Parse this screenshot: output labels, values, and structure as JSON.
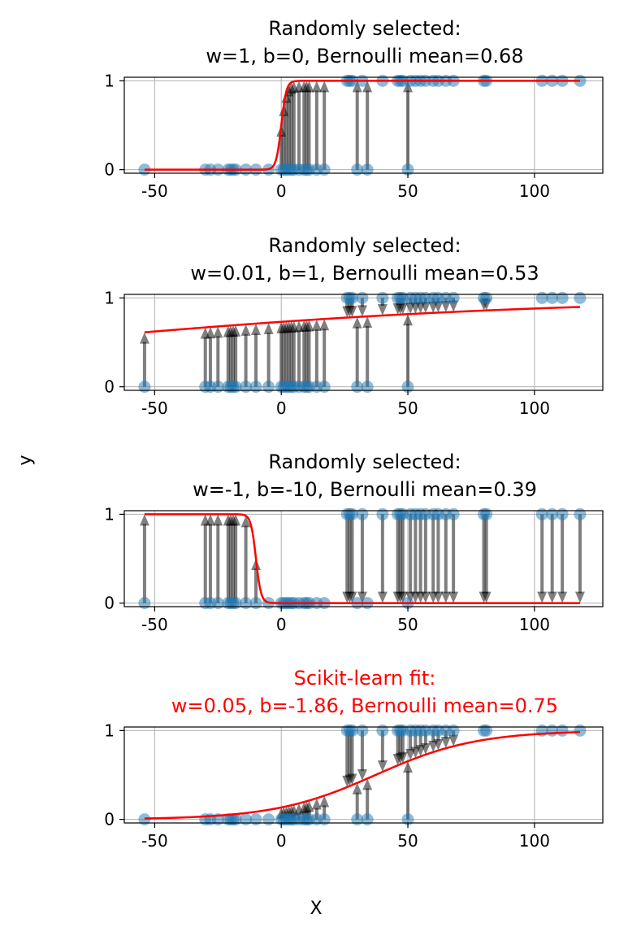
{
  "figure": {
    "ylabel": "y",
    "xlabel": "X"
  },
  "colors": {
    "points": "#1f77b4",
    "curve": "#ff0000",
    "arrow": "#000000",
    "grid": "#b0b0b0",
    "fit_title": "#ff0000",
    "title": "#000000"
  },
  "chart_data": [
    {
      "type": "scatter",
      "title_line1": "Randomly selected:",
      "title_line2": "w=1, b=0, Bernoulli mean=0.68",
      "w": 1,
      "b": 0,
      "xlim": [
        -62,
        127
      ],
      "ylim": [
        -0.04,
        1.04
      ],
      "xticks": [
        -50,
        0,
        50,
        100
      ],
      "yticks": [
        0,
        1
      ],
      "grid": true
    },
    {
      "type": "scatter",
      "title_line1": "Randomly selected:",
      "title_line2": "w=0.01, b=1, Bernoulli mean=0.53",
      "w": 0.01,
      "b": 1,
      "xlim": [
        -62,
        127
      ],
      "ylim": [
        -0.04,
        1.04
      ],
      "xticks": [
        -50,
        0,
        50,
        100
      ],
      "yticks": [
        0,
        1
      ],
      "grid": true
    },
    {
      "type": "scatter",
      "title_line1": "Randomly selected:",
      "title_line2": "w=-1, b=-10, Bernoulli mean=0.39",
      "w": -1,
      "b": -10,
      "xlim": [
        -62,
        127
      ],
      "ylim": [
        -0.04,
        1.04
      ],
      "xticks": [
        -50,
        0,
        50,
        100
      ],
      "yticks": [
        0,
        1
      ],
      "grid": true
    },
    {
      "type": "scatter",
      "title_line1": "Scikit-learn fit:",
      "title_line2": "w=0.05, b=-1.86, Bernoulli mean=0.75",
      "w": 0.05,
      "b": -1.86,
      "xlim": [
        -62,
        127
      ],
      "ylim": [
        -0.04,
        1.04
      ],
      "xticks": [
        -50,
        0,
        50,
        100
      ],
      "yticks": [
        0,
        1
      ],
      "grid": true
    }
  ],
  "points": {
    "x": [
      -54,
      -30,
      -28,
      -25,
      -21,
      -20,
      -19,
      -18,
      -14,
      -10,
      -5,
      0,
      1,
      2,
      3,
      4,
      5,
      7,
      9,
      10,
      11,
      14,
      17,
      26,
      27,
      28,
      30,
      32,
      34,
      40,
      46,
      47,
      48,
      50,
      51,
      53,
      55,
      57,
      60,
      62,
      65,
      68,
      80,
      81,
      103,
      107,
      111,
      118
    ],
    "y": [
      0,
      0,
      0,
      0,
      0,
      0,
      0,
      0,
      0,
      0,
      0,
      0,
      0,
      0,
      0,
      0,
      0,
      0,
      0,
      0,
      0,
      0,
      0,
      1,
      1,
      1,
      0,
      1,
      0,
      1,
      1,
      1,
      1,
      0,
      1,
      1,
      1,
      1,
      1,
      1,
      1,
      1,
      1,
      1,
      1,
      1,
      1,
      1
    ]
  }
}
